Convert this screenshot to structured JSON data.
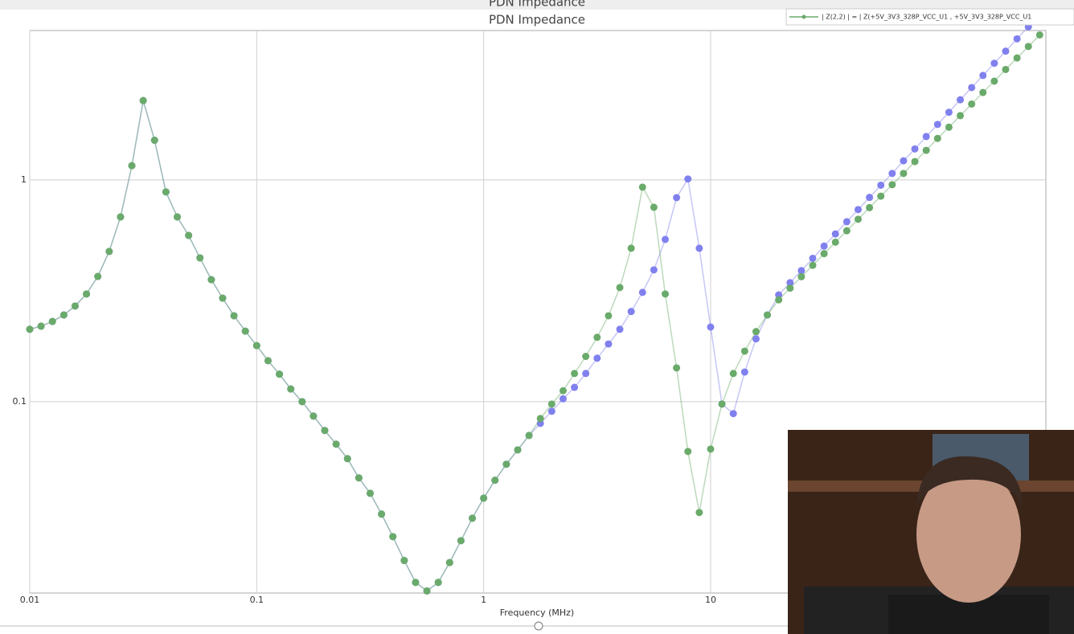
{
  "window_title": "PDN Impedance",
  "chart_data": {
    "type": "line",
    "title": "PDN Impedance",
    "xlabel": "Frequency (MHz)",
    "xlog": true,
    "ylog": true,
    "grid": true,
    "legend": "top-right",
    "xlim": [
      0.01,
      300
    ],
    "ylim": [
      0.0137,
      4.72
    ],
    "xticks": [
      0.01,
      0.1,
      1,
      10
    ],
    "yticks": [
      0.1,
      1
    ],
    "x": [
      0.01,
      0.01122,
      0.01259,
      0.01413,
      0.01585,
      0.01778,
      0.01995,
      0.02239,
      0.02512,
      0.02818,
      0.03162,
      0.03548,
      0.03981,
      0.04467,
      0.05012,
      0.05623,
      0.0631,
      0.07079,
      0.07943,
      0.08913,
      0.1,
      0.1122,
      0.1259,
      0.1413,
      0.1585,
      0.1778,
      0.1995,
      0.2239,
      0.2512,
      0.2818,
      0.3162,
      0.3548,
      0.3981,
      0.4467,
      0.5012,
      0.5623,
      0.631,
      0.7079,
      0.7943,
      0.8913,
      1,
      1.122,
      1.259,
      1.413,
      1.585,
      1.778,
      1.995,
      2.239,
      2.512,
      2.818,
      3.162,
      3.548,
      3.981,
      4.467,
      5.012,
      5.623,
      6.31,
      7.079,
      7.943,
      8.913,
      10,
      11.22,
      12.59,
      14.13,
      15.85,
      17.78,
      19.95,
      22.39,
      25.12,
      28.18,
      31.62,
      35.48,
      39.81,
      44.67,
      50.12,
      56.23,
      63.1,
      70.79,
      79.43,
      89.13,
      100,
      112.2,
      125.9,
      141.3,
      158.5,
      177.8,
      199.5,
      223.9,
      251.2,
      281.8
    ],
    "series": [
      {
        "color": "#8080ee",
        "values": [
          0.212,
          0.219,
          0.23,
          0.246,
          0.27,
          0.306,
          0.367,
          0.476,
          0.681,
          1.16,
          2.28,
          1.51,
          0.883,
          0.681,
          0.562,
          0.445,
          0.355,
          0.293,
          0.244,
          0.208,
          0.179,
          0.153,
          0.133,
          0.114,
          0.1,
          0.0861,
          0.0741,
          0.0643,
          0.0553,
          0.0453,
          0.0386,
          0.0311,
          0.0246,
          0.0192,
          0.0153,
          0.014,
          0.0153,
          0.0188,
          0.0236,
          0.0298,
          0.0367,
          0.0442,
          0.0522,
          0.0606,
          0.0704,
          0.0798,
          0.0905,
          0.103,
          0.116,
          0.134,
          0.157,
          0.182,
          0.212,
          0.255,
          0.311,
          0.393,
          0.539,
          0.832,
          1.01,
          0.492,
          0.217,
          0.0975,
          0.0883,
          0.136,
          0.192,
          0.246,
          0.303,
          0.344,
          0.39,
          0.443,
          0.503,
          0.571,
          0.648,
          0.735,
          0.834,
          0.947,
          1.07,
          1.22,
          1.38,
          1.57,
          1.78,
          2.02,
          2.3,
          2.61,
          2.96,
          3.36,
          3.81,
          4.33,
          4.91,
          5.57
        ]
      },
      {
        "name": "| Z(2,2) | = | Z(+5V_3V3_328P_VCC_U1 , +5V_3V3_328P_VCC_U1",
        "color": "#6aaa6a",
        "values": [
          0.212,
          0.219,
          0.23,
          0.246,
          0.27,
          0.306,
          0.367,
          0.476,
          0.681,
          1.16,
          2.28,
          1.51,
          0.883,
          0.681,
          0.562,
          0.445,
          0.355,
          0.293,
          0.244,
          0.208,
          0.179,
          0.153,
          0.133,
          0.114,
          0.1,
          0.0861,
          0.0741,
          0.0643,
          0.0553,
          0.0453,
          0.0386,
          0.0311,
          0.0246,
          0.0192,
          0.0153,
          0.014,
          0.0153,
          0.0188,
          0.0236,
          0.0298,
          0.0367,
          0.0442,
          0.0522,
          0.0606,
          0.0704,
          0.0839,
          0.0975,
          0.112,
          0.134,
          0.16,
          0.195,
          0.244,
          0.327,
          0.492,
          0.928,
          0.753,
          0.306,
          0.142,
          0.0596,
          0.0316,
          0.0611,
          0.0975,
          0.134,
          0.169,
          0.207,
          0.246,
          0.288,
          0.325,
          0.366,
          0.412,
          0.465,
          0.524,
          0.59,
          0.665,
          0.75,
          0.845,
          0.952,
          1.07,
          1.21,
          1.36,
          1.54,
          1.73,
          1.95,
          2.2,
          2.48,
          2.79,
          3.15,
          3.55,
          4.0,
          4.51
        ]
      }
    ]
  }
}
